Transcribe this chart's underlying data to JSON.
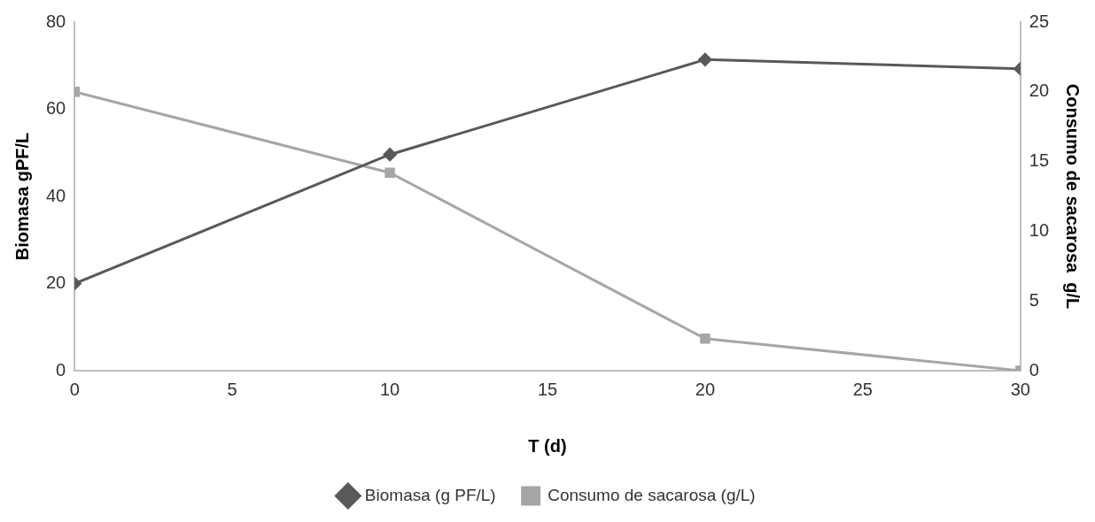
{
  "chart_data": {
    "type": "line",
    "xlabel": "T (d)",
    "ylabel": "Biomasa gPF/L",
    "y2label": "Consumo de sacarosa  g/L",
    "x": [
      0,
      10,
      20,
      30
    ],
    "series": [
      {
        "name": "Biomasa (g PF/L)",
        "color": "#595959",
        "values": [
          20,
          49.6,
          71.4,
          69.3
        ],
        "marker": "diamond"
      },
      {
        "name": "Consumo de sacarosa (g/L)",
        "color": "#a6a6a6",
        "values": [
          20,
          14.2,
          2.3,
          0
        ],
        "marker": "square",
        "axis": "y2"
      }
    ],
    "xlim": [
      0,
      30
    ],
    "xticks": [
      0,
      5,
      10,
      15,
      20,
      25,
      30
    ],
    "ylim": [
      0,
      80
    ],
    "yticks": [
      0,
      20,
      40,
      60,
      80
    ],
    "y2lim": [
      0,
      25
    ],
    "y2ticks": [
      0,
      5,
      10,
      15,
      20,
      25
    ],
    "grid": false,
    "legend": "bottom",
    "line_style": "solid"
  }
}
